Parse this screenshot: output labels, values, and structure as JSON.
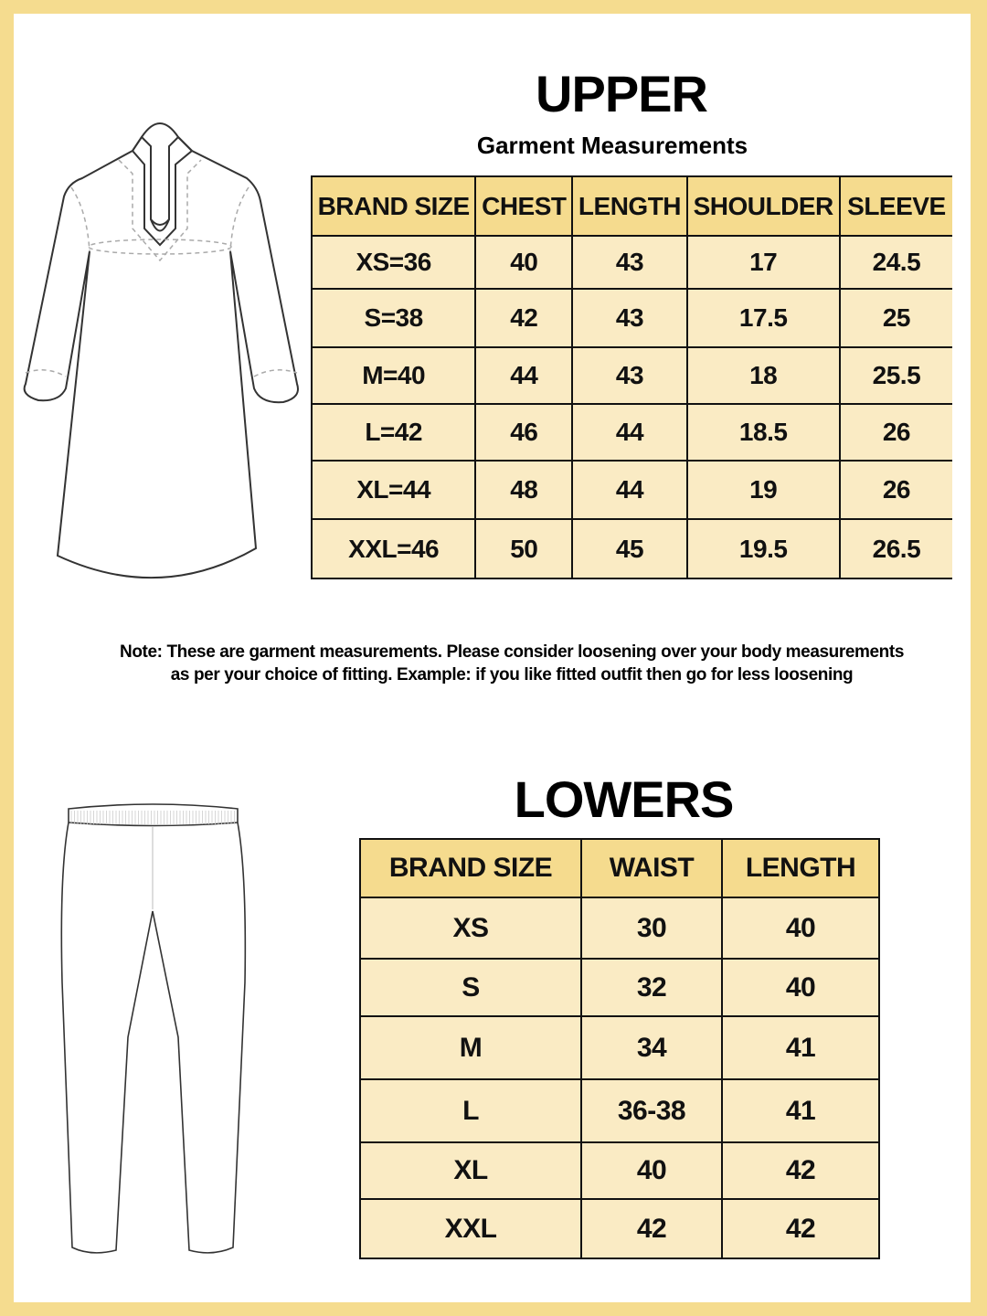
{
  "colors": {
    "frame": "#F5DC8F",
    "header": "#F5DB8E",
    "row": "#FAEBC4"
  },
  "upper": {
    "title": "UPPER",
    "subtitle": "Garment Measurements",
    "headers": [
      "BRAND SIZE",
      "CHEST",
      "LENGTH",
      "SHOULDER",
      "SLEEVE"
    ],
    "rows": [
      [
        "XS=36",
        "40",
        "43",
        "17",
        "24.5"
      ],
      [
        "S=38",
        "42",
        "43",
        "17.5",
        "25"
      ],
      [
        "M=40",
        "44",
        "43",
        "18",
        "25.5"
      ],
      [
        "L=42",
        "46",
        "44",
        "18.5",
        "26"
      ],
      [
        "XL=44",
        "48",
        "44",
        "19",
        "26"
      ],
      [
        "XXL=46",
        "50",
        "45",
        "19.5",
        "26.5"
      ]
    ]
  },
  "note": {
    "line1": "Note: These are garment measurements. Please consider loosening over your body measurements",
    "line2": "as per your choice of fitting. Example: if you like fitted outfit then go for less loosening"
  },
  "lowers": {
    "title": "LOWERS",
    "headers": [
      "BRAND SIZE",
      "WAIST",
      "LENGTH"
    ],
    "rows": [
      [
        "XS",
        "30",
        "40"
      ],
      [
        "S",
        "32",
        "40"
      ],
      [
        "M",
        "34",
        "41"
      ],
      [
        "L",
        "36-38",
        "41"
      ],
      [
        "XL",
        "40",
        "42"
      ],
      [
        "XXL",
        "42",
        "42"
      ]
    ]
  }
}
